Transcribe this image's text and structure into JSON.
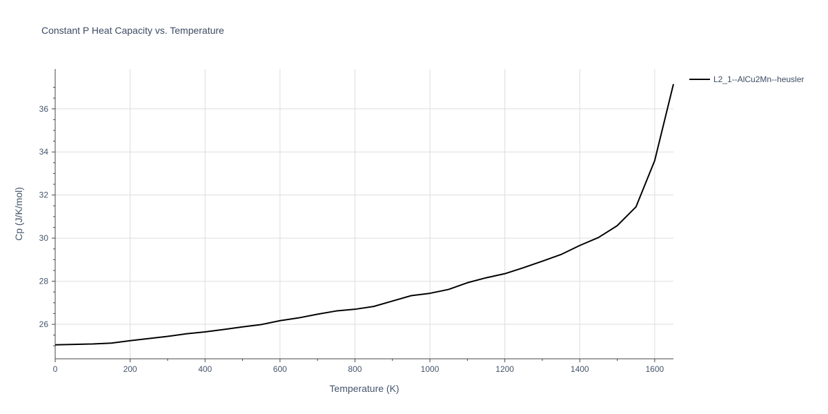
{
  "chart_data": {
    "type": "line",
    "title": "Constant P Heat Capacity vs. Temperature",
    "xlabel": "Temperature (K)",
    "ylabel": "Cp (J/K/mol)",
    "xlim": [
      0,
      1650
    ],
    "ylim": [
      24.4,
      37.85
    ],
    "x_ticks": [
      0,
      200,
      400,
      600,
      800,
      1000,
      1200,
      1400,
      1600
    ],
    "y_ticks": [
      26,
      28,
      30,
      32,
      34,
      36
    ],
    "grid": true,
    "legend_position": "top-right",
    "series": [
      {
        "name": "L2_1--AlCu2Mn--heusler",
        "color": "#000000",
        "x": [
          0,
          50,
          100,
          150,
          200,
          250,
          300,
          350,
          400,
          450,
          500,
          550,
          600,
          650,
          700,
          750,
          800,
          850,
          900,
          950,
          1000,
          1050,
          1100,
          1150,
          1200,
          1250,
          1300,
          1350,
          1400,
          1450,
          1500,
          1550,
          1600,
          1650
        ],
        "y": [
          25.05,
          25.07,
          25.09,
          25.13,
          25.24,
          25.34,
          25.44,
          25.56,
          25.65,
          25.76,
          25.88,
          25.99,
          26.17,
          26.3,
          26.47,
          26.62,
          26.7,
          26.83,
          27.08,
          27.33,
          27.44,
          27.62,
          27.93,
          28.16,
          28.35,
          28.63,
          28.93,
          29.24,
          29.66,
          30.03,
          30.58,
          31.45,
          33.6,
          37.15
        ]
      }
    ]
  }
}
